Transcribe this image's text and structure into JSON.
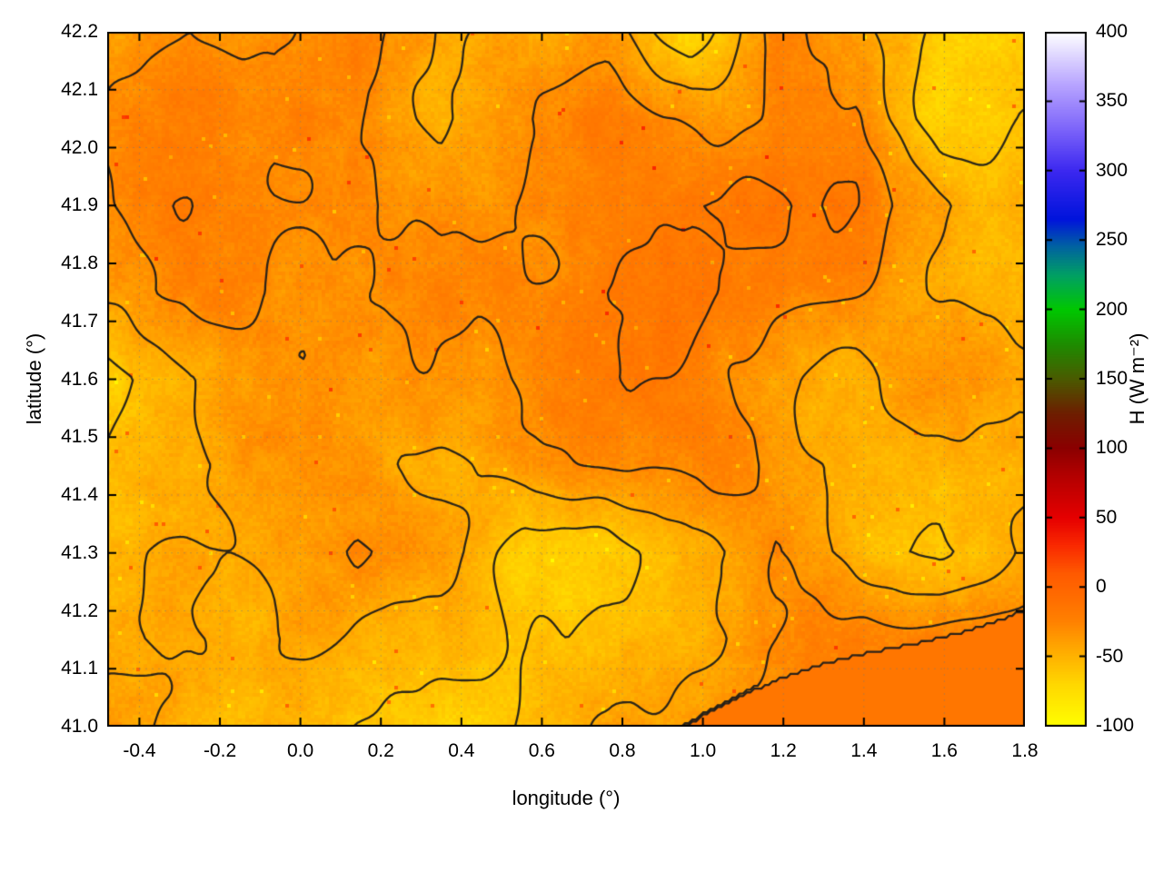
{
  "chart_data": {
    "type": "heatmap",
    "title": "",
    "xlabel": "longitude (°)",
    "ylabel": "latitude (°)",
    "xlim": [
      -0.48,
      1.8
    ],
    "ylim": [
      41.0,
      42.2
    ],
    "xticks": [
      "-0.4",
      "-0.2",
      "0.0",
      "0.2",
      "0.4",
      "0.6",
      "0.8",
      "1.0",
      "1.2",
      "1.4",
      "1.6",
      "1.8"
    ],
    "yticks": [
      "41.0",
      "41.1",
      "41.2",
      "41.3",
      "41.4",
      "41.5",
      "41.6",
      "41.7",
      "41.8",
      "41.9",
      "42.0",
      "42.1",
      "42.2"
    ],
    "grid": "dotted",
    "colorbar": {
      "label": "H (W m⁻²)",
      "min": -100,
      "max": 400,
      "ticks": [
        "-100",
        "-50",
        "0",
        "50",
        "100",
        "150",
        "200",
        "250",
        "300",
        "350",
        "400"
      ],
      "colormap": [
        [
          -100,
          "#ffff00"
        ],
        [
          -70,
          "#ffd800"
        ],
        [
          -45,
          "#ffaa00"
        ],
        [
          -25,
          "#ff8200"
        ],
        [
          -10,
          "#ff7000"
        ],
        [
          10,
          "#ff5a00"
        ],
        [
          30,
          "#fa2a00"
        ],
        [
          50,
          "#e60000"
        ],
        [
          80,
          "#b40000"
        ],
        [
          100,
          "#8c0000"
        ],
        [
          125,
          "#6e1e00"
        ],
        [
          150,
          "#4b5a00"
        ],
        [
          175,
          "#1e8c00"
        ],
        [
          200,
          "#00c800"
        ],
        [
          225,
          "#00a064"
        ],
        [
          245,
          "#0064a0"
        ],
        [
          265,
          "#0014dc"
        ],
        [
          300,
          "#3c28f0"
        ],
        [
          330,
          "#7d64fa"
        ],
        [
          360,
          "#b4a0ff"
        ],
        [
          400,
          "#ffffff"
        ]
      ]
    },
    "contours": {
      "levels": [
        -58,
        -44,
        -30,
        -18
      ],
      "color": "#1a1a1a"
    },
    "field": {
      "units": "W m⁻²",
      "order": "rows north to south (lat 42.2 to 41.0), cols west to east (lon -0.48 to 1.80), values approximate",
      "values": [
        [
          -35,
          -30,
          -42,
          -30,
          -52,
          -45,
          -38,
          -60,
          -30,
          -45,
          -65,
          -60
        ],
        [
          -30,
          -28,
          -36,
          -30,
          -50,
          -34,
          -22,
          -32,
          -34,
          -30,
          -70,
          -58
        ],
        [
          -32,
          -26,
          -30,
          -30,
          -36,
          -28,
          -24,
          -20,
          -20,
          -26,
          -40,
          -55
        ],
        [
          -40,
          -34,
          -34,
          -34,
          -30,
          -26,
          -18,
          -16,
          -24,
          -30,
          -45,
          -50
        ],
        [
          -72,
          -50,
          -44,
          -40,
          -34,
          -30,
          -20,
          -20,
          -30,
          -46,
          -36,
          -45
        ],
        [
          -60,
          -55,
          -46,
          -40,
          -44,
          -40,
          -34,
          -26,
          -30,
          -42,
          -50,
          -40
        ],
        [
          -46,
          -44,
          -40,
          -30,
          -36,
          -60,
          -56,
          -44,
          -36,
          -52,
          -56,
          -35
        ],
        [
          -42,
          -46,
          -50,
          -46,
          -50,
          -56,
          -50,
          -40,
          -30,
          -22,
          -16,
          -16
        ],
        [
          -46,
          -58,
          -50,
          -58,
          -62,
          -50,
          -42,
          -22,
          -16,
          -16,
          -16,
          -16
        ]
      ]
    },
    "sea": {
      "value": -15,
      "boundary": "lat < 41.0 + 0.26*(lon - 0.95), flat region bottom-right"
    }
  }
}
